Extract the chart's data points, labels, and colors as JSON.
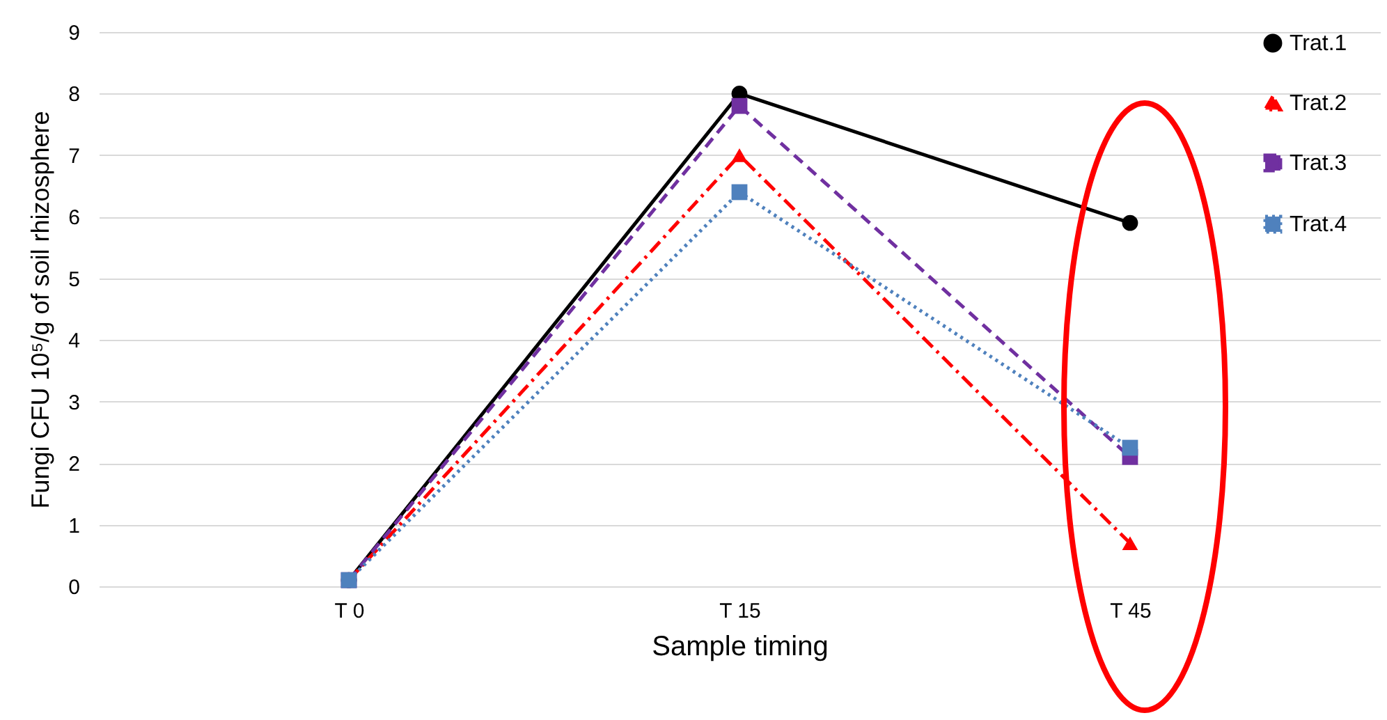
{
  "chart_data": {
    "type": "line",
    "xlabel": "Sample timing",
    "ylabel": "Fungi CFU 10⁵/g of soil rhizosphere",
    "categories": [
      "T 0",
      "T 15",
      "T 45"
    ],
    "series": [
      {
        "name": "Trat.1",
        "color": "#000000",
        "marker": "circle",
        "line_style": "solid",
        "values": [
          0.1,
          8.0,
          5.9
        ]
      },
      {
        "name": "Trat.2",
        "color": "#ff0000",
        "marker": "triangle",
        "line_style": "dashdot",
        "values": [
          0.1,
          7.0,
          0.7
        ]
      },
      {
        "name": "Trat.3",
        "color": "#7030a0",
        "marker": "square",
        "line_style": "dashed",
        "values": [
          0.1,
          7.8,
          2.1
        ]
      },
      {
        "name": "Trat.4",
        "color": "#4f81bd",
        "marker": "square",
        "line_style": "dotted",
        "values": [
          0.1,
          6.4,
          2.25
        ]
      }
    ],
    "ylim": [
      0,
      9
    ],
    "yticks": [
      0,
      1,
      2,
      3,
      4,
      5,
      6,
      7,
      8,
      9
    ],
    "grid": "y",
    "legend": "right"
  }
}
